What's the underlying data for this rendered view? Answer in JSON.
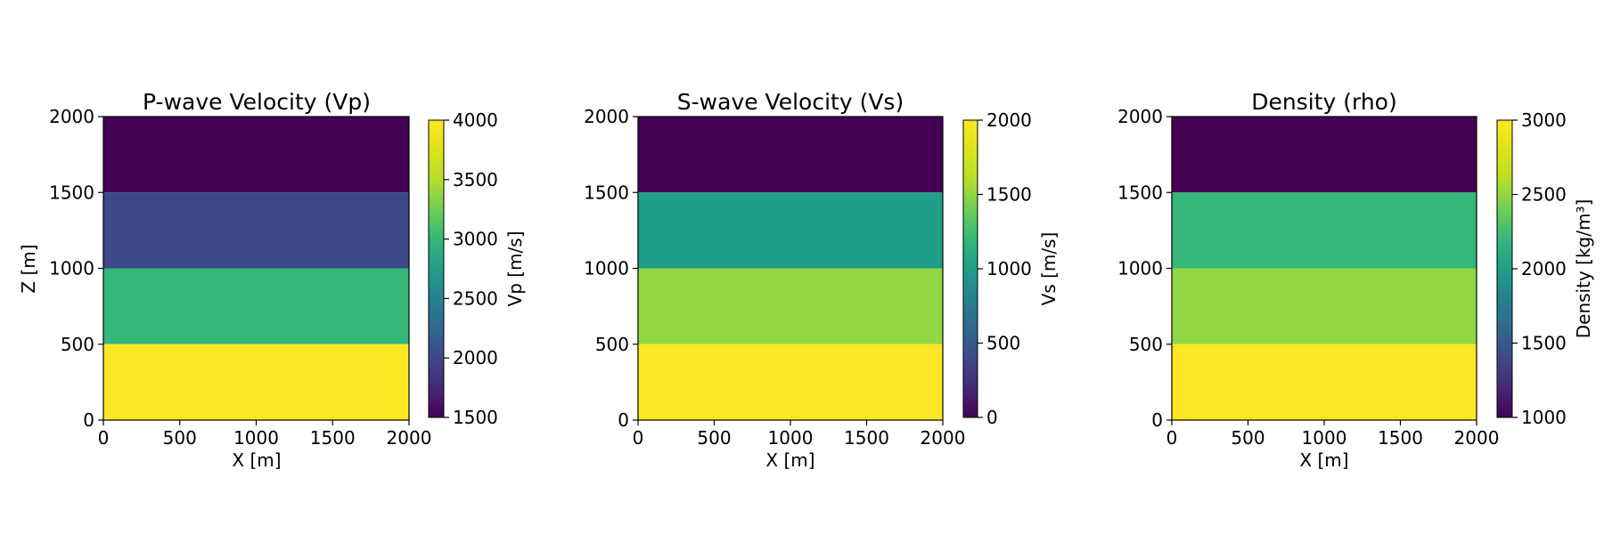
{
  "chart_data": [
    {
      "type": "heatmap",
      "title": "P-wave Velocity (Vp)",
      "xlabel": "X [m]",
      "ylabel": "Z [m]",
      "xlim": [
        0,
        2000
      ],
      "ylim": [
        0,
        2000
      ],
      "xticks": [
        "0",
        "500",
        "1000",
        "1500",
        "2000"
      ],
      "yticks": [
        "0",
        "500",
        "1000",
        "1500",
        "2000"
      ],
      "layers": [
        {
          "z_from": 1500,
          "z_to": 2000,
          "value": 1500
        },
        {
          "z_from": 1000,
          "z_to": 1500,
          "value": 2000
        },
        {
          "z_from": 500,
          "z_to": 1000,
          "value": 3000
        },
        {
          "z_from": 0,
          "z_to": 500,
          "value": 4000
        }
      ],
      "colorbar": {
        "label": "Vp [m/s]",
        "range": [
          1500,
          4000
        ],
        "ticks": [
          "1500",
          "2000",
          "2500",
          "3000",
          "3500",
          "4000"
        ],
        "colormap": "viridis"
      }
    },
    {
      "type": "heatmap",
      "title": "S-wave Velocity (Vs)",
      "xlabel": "X [m]",
      "ylabel": "",
      "xlim": [
        0,
        2000
      ],
      "ylim": [
        0,
        2000
      ],
      "xticks": [
        "0",
        "500",
        "1000",
        "1500",
        "2000"
      ],
      "yticks": [
        "0",
        "500",
        "1000",
        "1500",
        "2000"
      ],
      "layers": [
        {
          "z_from": 1500,
          "z_to": 2000,
          "value": 0
        },
        {
          "z_from": 1000,
          "z_to": 1500,
          "value": 1000
        },
        {
          "z_from": 500,
          "z_to": 1000,
          "value": 1500
        },
        {
          "z_from": 0,
          "z_to": 500,
          "value": 2000
        }
      ],
      "colorbar": {
        "label": "Vs [m/s]",
        "range": [
          0,
          2000
        ],
        "ticks": [
          "0",
          "500",
          "1000",
          "1500",
          "2000"
        ],
        "colormap": "viridis"
      }
    },
    {
      "type": "heatmap",
      "title": "Density (rho)",
      "xlabel": "X [m]",
      "ylabel": "",
      "xlim": [
        0,
        2000
      ],
      "ylim": [
        0,
        2000
      ],
      "xticks": [
        "0",
        "500",
        "1000",
        "1500",
        "2000"
      ],
      "yticks": [
        "0",
        "500",
        "1000",
        "1500",
        "2000"
      ],
      "layers": [
        {
          "z_from": 1500,
          "z_to": 2000,
          "value": 1000
        },
        {
          "z_from": 1000,
          "z_to": 1500,
          "value": 2200
        },
        {
          "z_from": 500,
          "z_to": 1000,
          "value": 2500
        },
        {
          "z_from": 0,
          "z_to": 500,
          "value": 3000
        }
      ],
      "colorbar": {
        "label": "Density [kg/m³]",
        "range": [
          1000,
          3000
        ],
        "ticks": [
          "1000",
          "1500",
          "2000",
          "2500",
          "3000"
        ],
        "colormap": "viridis"
      }
    }
  ]
}
